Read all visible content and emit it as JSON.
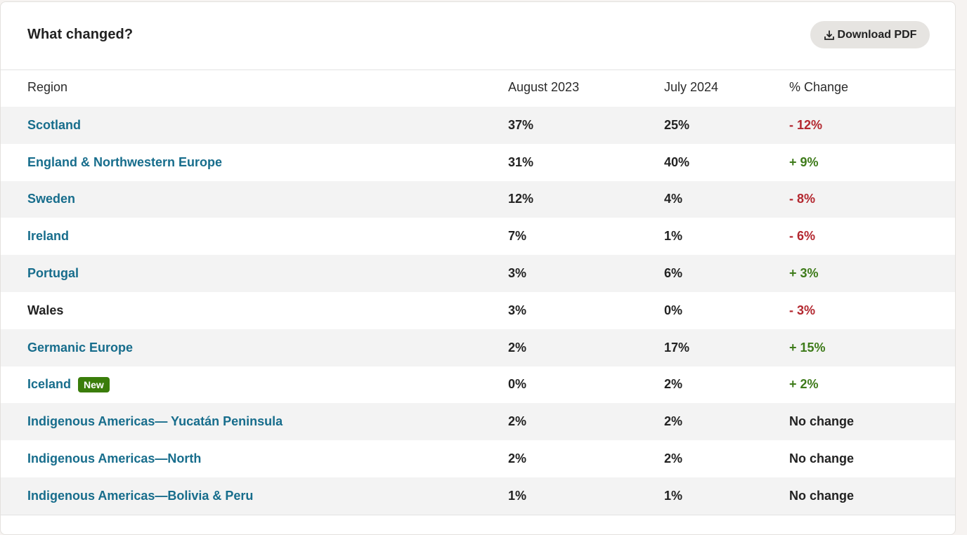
{
  "header": {
    "title": "What changed?",
    "download_label": "Download PDF"
  },
  "table": {
    "columns": [
      "Region",
      "August 2023",
      "July 2024",
      "% Change"
    ],
    "rows": [
      {
        "region": "Scotland",
        "aug": "37%",
        "jul": "25%",
        "change": "- 12%",
        "type": "neg",
        "link": true
      },
      {
        "region": "England & Northwestern Europe",
        "aug": "31%",
        "jul": "40%",
        "change": "+ 9%",
        "type": "pos",
        "link": true
      },
      {
        "region": "Sweden",
        "aug": "12%",
        "jul": "4%",
        "change": "- 8%",
        "type": "neg",
        "link": true
      },
      {
        "region": "Ireland",
        "aug": "7%",
        "jul": "1%",
        "change": "- 6%",
        "type": "neg",
        "link": true
      },
      {
        "region": "Portugal",
        "aug": "3%",
        "jul": "6%",
        "change": "+ 3%",
        "type": "pos",
        "link": true
      },
      {
        "region": "Wales",
        "aug": "3%",
        "jul": "0%",
        "change": "- 3%",
        "type": "neg",
        "link": false
      },
      {
        "region": "Germanic Europe",
        "aug": "2%",
        "jul": "17%",
        "change": "+ 15%",
        "type": "pos",
        "link": true
      },
      {
        "region": "Iceland",
        "badge": "New",
        "aug": "0%",
        "jul": "2%",
        "change": "+ 2%",
        "type": "pos",
        "link": true
      },
      {
        "region": "Indigenous Americas— Yucatán Peninsula",
        "aug": "2%",
        "jul": "2%",
        "change": "No change",
        "type": "nochange",
        "link": true
      },
      {
        "region": "Indigenous Americas—North",
        "aug": "2%",
        "jul": "2%",
        "change": "No change",
        "type": "nochange",
        "link": true
      },
      {
        "region": "Indigenous Americas—Bolivia & Peru",
        "aug": "1%",
        "jul": "1%",
        "change": "No change",
        "type": "nochange",
        "link": true
      }
    ]
  },
  "colors": {
    "link": "#176d8c",
    "positive": "#3e7b1a",
    "negative": "#b3272f",
    "badge": "#3a7d0a",
    "row_shade": "#f3f3f3"
  },
  "icons": {
    "download": "download-icon"
  }
}
